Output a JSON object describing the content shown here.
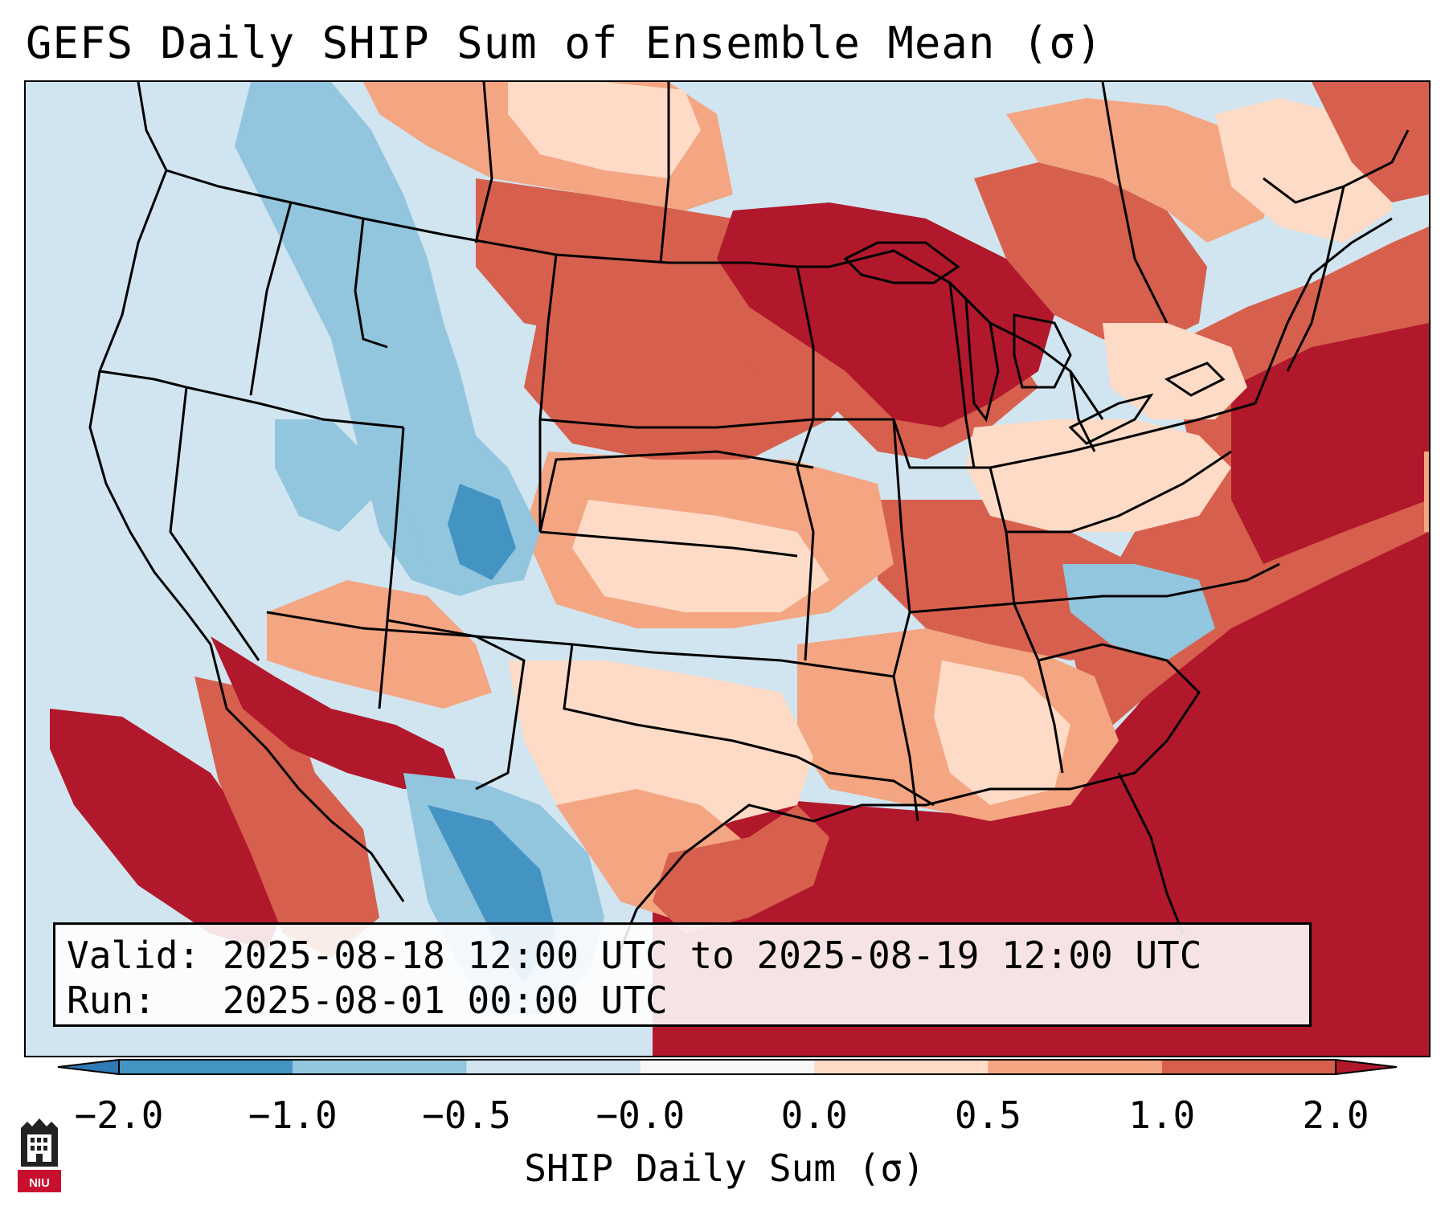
{
  "title": "GEFS Daily SHIP Sum of Ensemble Mean (σ)",
  "info": {
    "valid_line": "Valid: 2025-08-18 12:00 UTC to 2025-08-19 12:00 UTC",
    "run_line": "Run:   2025-08-01 00:00 UTC"
  },
  "colorbar": {
    "label": "SHIP Daily Sum (σ)",
    "ticks": [
      "−2.0",
      "−1.0",
      "−0.5",
      "−0.0",
      "0.0",
      "0.5",
      "1.0",
      "2.0"
    ],
    "colors": [
      "#2f79b5",
      "#4393c3",
      "#92c5de",
      "#d1e5f0",
      "#f7f7f7",
      "#fddbc7",
      "#f4a582",
      "#d6604d",
      "#b2182b"
    ]
  },
  "logo": {
    "text": "NIU",
    "color": "#c8102e"
  }
}
